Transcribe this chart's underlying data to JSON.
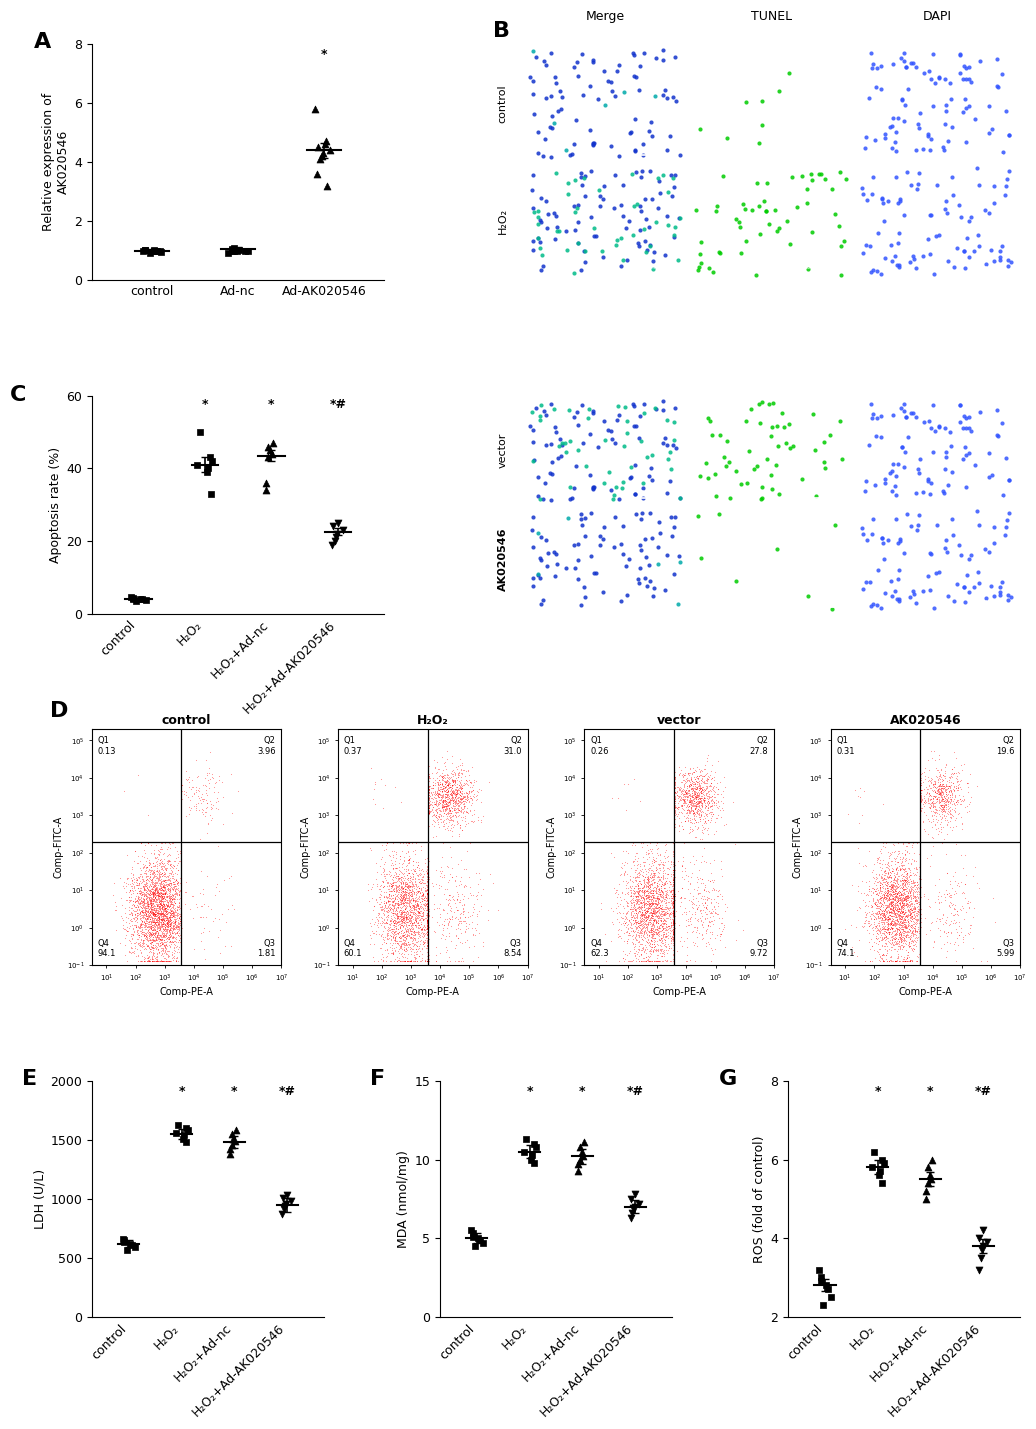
{
  "panel_A": {
    "label": "A",
    "groups": [
      "control",
      "Ad-nc",
      "Ad-AK020546"
    ],
    "ylabel": "Relative expression of\nAK020546",
    "ylim": [
      0,
      8
    ],
    "yticks": [
      0,
      2,
      4,
      6,
      8
    ],
    "means": [
      1.0,
      1.05,
      4.4
    ],
    "sems": [
      0.05,
      0.06,
      0.25
    ],
    "data_points": [
      [
        0.93,
        0.96,
        0.98,
        1.0,
        1.01,
        1.02,
        0.97,
        0.99,
        1.01,
        0.98
      ],
      [
        0.93,
        0.97,
        1.0,
        1.02,
        1.05,
        1.0,
        0.98,
        1.01,
        0.99,
        1.1
      ],
      [
        3.2,
        3.6,
        4.1,
        4.2,
        4.3,
        4.4,
        4.5,
        4.6,
        4.7,
        5.8
      ]
    ],
    "marker_types": [
      "s",
      "s",
      "^"
    ],
    "sig_labels": [
      "",
      "",
      "*"
    ]
  },
  "panel_C": {
    "label": "C",
    "groups": [
      "control",
      "H₂O₂",
      "H₂O₂+Ad-nc",
      "H₂O₂+Ad-AK020546"
    ],
    "ylabel": "Apoptosis rate (%)",
    "ylim": [
      0,
      60
    ],
    "yticks": [
      0,
      20,
      40,
      60
    ],
    "means": [
      4.0,
      41.0,
      43.5,
      22.5
    ],
    "sems": [
      0.3,
      2.0,
      1.5,
      1.0
    ],
    "data_points": [
      [
        3.5,
        3.7,
        3.9,
        4.0,
        4.1,
        4.2,
        4.5
      ],
      [
        33.0,
        39.0,
        40.0,
        41.0,
        42.0,
        43.0,
        50.0
      ],
      [
        34.0,
        36.0,
        43.0,
        44.0,
        45.0,
        46.0,
        47.0
      ],
      [
        19.0,
        20.0,
        21.0,
        22.0,
        23.0,
        24.0,
        25.0
      ]
    ],
    "marker_types": [
      "s",
      "s",
      "^",
      "v"
    ],
    "sig_labels": [
      "",
      "*",
      "*",
      "*#"
    ]
  },
  "panel_D": {
    "label": "D",
    "subpanels": [
      "control",
      "H₂O₂",
      "vector",
      "AK020546"
    ],
    "Q1": [
      0.13,
      0.37,
      0.26,
      0.31
    ],
    "Q2": [
      3.96,
      31.0,
      27.8,
      19.6
    ],
    "Q3": [
      1.81,
      8.54,
      9.72,
      5.99
    ],
    "Q4": [
      94.1,
      60.1,
      62.3,
      74.1
    ],
    "dot_color": "#FF0000",
    "xlabel": "Comp-PE-A",
    "ylabel": "Comp-FITC-A"
  },
  "panel_E": {
    "label": "E",
    "groups": [
      "control",
      "H₂O₂",
      "H₂O₂+Ad-nc",
      "H₂O₂+Ad-AK020546"
    ],
    "ylabel": "LDH (U/L)",
    "ylim": [
      0,
      2000
    ],
    "yticks": [
      0,
      500,
      1000,
      1500,
      2000
    ],
    "means": [
      620,
      1550,
      1480,
      950
    ],
    "sems": [
      30,
      40,
      50,
      60
    ],
    "data_points": [
      [
        570,
        590,
        610,
        620,
        630,
        650,
        660
      ],
      [
        1480,
        1510,
        1540,
        1560,
        1580,
        1600,
        1630
      ],
      [
        1380,
        1420,
        1460,
        1490,
        1510,
        1550,
        1580
      ],
      [
        870,
        910,
        940,
        960,
        980,
        1010,
        1030
      ]
    ],
    "marker_types": [
      "s",
      "s",
      "^",
      "v"
    ],
    "sig_labels": [
      "",
      "*",
      "*",
      "*#"
    ]
  },
  "panel_F": {
    "label": "F",
    "groups": [
      "control",
      "H₂O₂",
      "H₂O₂+Ad-nc",
      "H₂O₂+Ad-AK020546"
    ],
    "ylabel": "MDA (nmol/mg)",
    "ylim": [
      0,
      15
    ],
    "yticks": [
      0,
      5,
      10,
      15
    ],
    "means": [
      5.0,
      10.5,
      10.2,
      7.0
    ],
    "sems": [
      0.3,
      0.4,
      0.5,
      0.4
    ],
    "data_points": [
      [
        4.5,
        4.7,
        4.9,
        5.0,
        5.1,
        5.3,
        5.5
      ],
      [
        9.8,
        10.0,
        10.3,
        10.5,
        10.8,
        11.0,
        11.3
      ],
      [
        9.3,
        9.7,
        10.0,
        10.2,
        10.5,
        10.8,
        11.1
      ],
      [
        6.3,
        6.6,
        6.9,
        7.0,
        7.2,
        7.5,
        7.8
      ]
    ],
    "marker_types": [
      "s",
      "s",
      "^",
      "v"
    ],
    "sig_labels": [
      "",
      "*",
      "*",
      "*#"
    ]
  },
  "panel_G": {
    "label": "G",
    "groups": [
      "control",
      "H₂O₂",
      "H₂O₂+Ad-nc",
      "H₂O₂+Ad-AK020546"
    ],
    "ylabel": "ROS (fold of control)",
    "ylim": [
      2,
      8
    ],
    "yticks": [
      2,
      4,
      6,
      8
    ],
    "means": [
      2.8,
      5.8,
      5.5,
      3.8
    ],
    "sems": [
      0.15,
      0.18,
      0.18,
      0.18
    ],
    "data_points": [
      [
        2.3,
        2.5,
        2.7,
        2.8,
        2.9,
        3.0,
        3.2
      ],
      [
        5.4,
        5.6,
        5.7,
        5.8,
        5.9,
        6.0,
        6.2
      ],
      [
        5.0,
        5.2,
        5.4,
        5.5,
        5.6,
        5.8,
        6.0
      ],
      [
        3.2,
        3.5,
        3.7,
        3.8,
        3.9,
        4.0,
        4.2
      ]
    ],
    "marker_types": [
      "s",
      "s",
      "^",
      "v"
    ],
    "sig_labels": [
      "",
      "*",
      "*",
      "*#"
    ]
  },
  "background_color": "#ffffff",
  "marker_size": 5,
  "line_width": 1.2,
  "tick_fontsize": 9,
  "panel_label_fontsize": 16
}
